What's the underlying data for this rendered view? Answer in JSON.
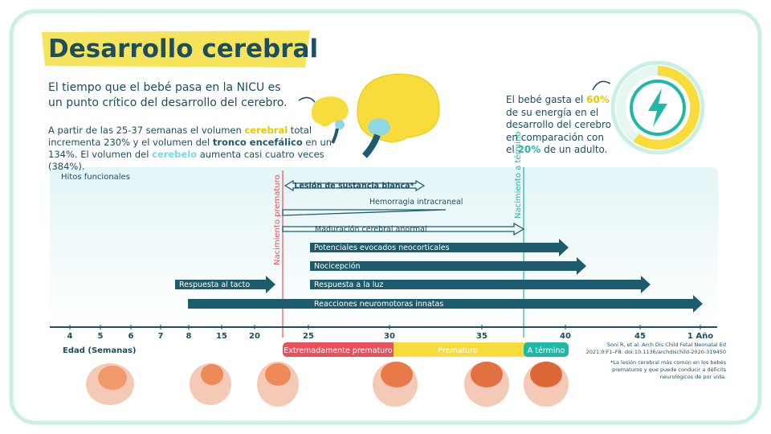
{
  "header": {
    "title": "Desarrollo cerebral"
  },
  "intro": "El tiempo que el bebé pasa en la NICU es un punto crítico del desarrollo del cerebro.",
  "volume_text": [
    "A partir de las 25-37 semanas el volumen ",
    "cerebral",
    " total incrementa 230% y el volumen del ",
    "tronco encefálico",
    " en un 134%. El volumen del ",
    "cerebelo",
    " aumenta casi cuatro veces (384%)."
  ],
  "energy_text": [
    "El bebé gasta el ",
    "60%",
    " de su energía en el desarrollo del cerebro en comparación con el ",
    "20%",
    " de un adulto."
  ],
  "timeline": {
    "panel_label": "Hitos funcionales",
    "markers": [
      "Nacimiento prematuro",
      "Nacimiento a término"
    ],
    "milestones": [
      "Lesión de sustancia blanca*",
      "Hemorragia intracraneal",
      "Maduración cerebral anormal",
      "Potenciales evocados neocorticales",
      "Nocicepción",
      "Respuesta al tacto",
      "Respuesta a la luz",
      "Reacciones neuromotoras innatas"
    ],
    "ticks": [
      "4",
      "5",
      "6",
      "7",
      "8",
      "15",
      "20",
      "25",
      "30",
      "35",
      "40",
      "45",
      "1 Año"
    ],
    "axis_label": "Edad (Semanas)",
    "bands": [
      "Extremadamente prematuro",
      "Prematuro",
      "A término"
    ]
  },
  "citation": "Soni R, et al. Arch Dis Child Fetal Neonatal Ed 2021;0:F1–F8. doi:10.1136/archdischild-2020-319450",
  "footnote": "*La lesión cerebral más común en los bebés prematuros y que puede conducir a déficits neurológicos de por vida."
}
